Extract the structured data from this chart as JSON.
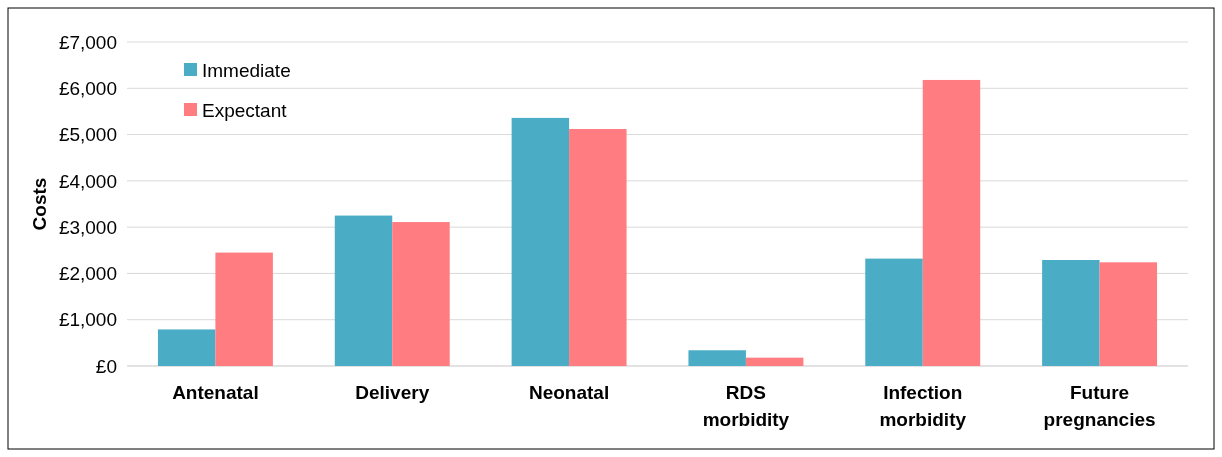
{
  "chart_data": {
    "type": "bar",
    "ylabel": "Costs",
    "categories": [
      "Antenatal",
      "Delivery",
      "Neonatal",
      "RDS morbidity",
      "Infection morbidity",
      "Future pregnancies"
    ],
    "series": [
      {
        "name": "Immediate",
        "color": "#4bacc6",
        "values": [
          790,
          3250,
          5360,
          340,
          2320,
          2290
        ]
      },
      {
        "name": "Expectant",
        "color": "#ff7c80",
        "values": [
          2450,
          3110,
          5120,
          180,
          6180,
          2240
        ]
      }
    ],
    "ylim": [
      0,
      7000
    ],
    "yticks": [
      {
        "value": 0,
        "label": "£0"
      },
      {
        "value": 1000,
        "label": "£1,000"
      },
      {
        "value": 2000,
        "label": "£2,000"
      },
      {
        "value": 3000,
        "label": "£3,000"
      },
      {
        "value": 4000,
        "label": "£4,000"
      },
      {
        "value": 5000,
        "label": "£5,000"
      },
      {
        "value": 6000,
        "label": "£6,000"
      },
      {
        "value": 7000,
        "label": "£7,000"
      }
    ],
    "grid": "y",
    "legend": "top left"
  }
}
